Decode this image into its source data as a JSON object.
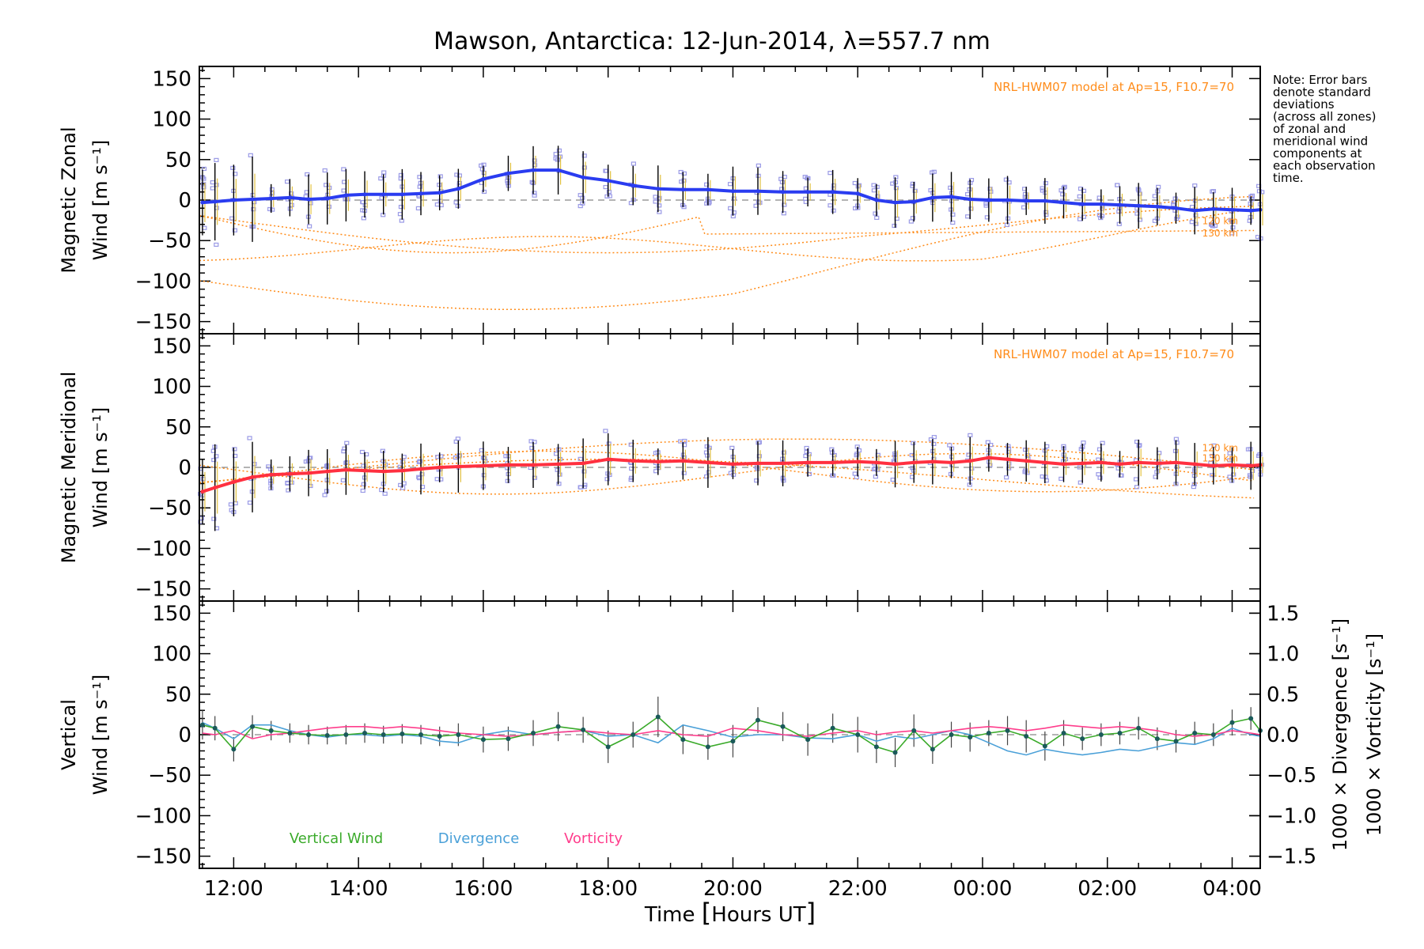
{
  "chart_data": {
    "type": "line",
    "title": "Mawson, Antarctica: 12-Jun-2014, λ=557.7 nm",
    "xlabel_prefix": "Time ",
    "xlabel_unit": "Hours UT",
    "xlim_hours": [
      11.45,
      28.45
    ],
    "x_ticks": [
      12,
      14,
      16,
      18,
      20,
      22,
      24,
      26,
      28
    ],
    "x_tick_labels": [
      "12:00",
      "14:00",
      "16:00",
      "18:00",
      "20:00",
      "22:00",
      "00:00",
      "02:00",
      "04:00"
    ],
    "note_lines": [
      "Note: Error bars",
      "denote standard",
      "deviations",
      "(across all zones)",
      "of zonal and",
      "meridional wind",
      "components at",
      "each observation",
      "time."
    ],
    "colors": {
      "zonal": "#2a3cf0",
      "meridional": "#ff3040",
      "model": "#ff8c1a",
      "vertical": "#2e8b2e",
      "divergence": "#4aa0d8",
      "vorticity": "#ff3d8c",
      "scatter": "#9a9ae6"
    },
    "panels": [
      {
        "id": "zonal",
        "ylabel_line1": "Magnetic Zonal",
        "ylabel_line2": "Wind [m s⁻¹]",
        "ylim": [
          -165,
          165
        ],
        "y_ticks": [
          150,
          100,
          50,
          0,
          -50,
          -100,
          -150
        ],
        "model_label": "NRL-HWM07 model at Ap=15, F10.7=70",
        "model_height_labels": [
          "120 km",
          "130 km"
        ],
        "series": [
          {
            "name": "Magnetic Zonal Wind",
            "x": [
              11.5,
              11.7,
              12.0,
              12.3,
              12.6,
              12.9,
              13.2,
              13.5,
              13.8,
              14.1,
              14.4,
              14.7,
              15.0,
              15.3,
              15.6,
              16.0,
              16.4,
              16.8,
              17.2,
              17.6,
              18.0,
              18.4,
              18.8,
              19.2,
              19.6,
              20.0,
              20.4,
              20.8,
              21.2,
              21.6,
              22.0,
              22.3,
              22.6,
              22.9,
              23.2,
              23.5,
              23.8,
              24.1,
              24.4,
              24.7,
              25.0,
              25.3,
              25.6,
              25.9,
              26.2,
              26.5,
              26.8,
              27.1,
              27.4,
              27.7,
              28.0,
              28.3,
              28.45
            ],
            "y": [
              -3,
              -2,
              0,
              1,
              2,
              3,
              1,
              2,
              6,
              7,
              7,
              7,
              8,
              9,
              14,
              26,
              33,
              37,
              37,
              28,
              24,
              18,
              14,
              13,
              13,
              11,
              11,
              10,
              10,
              10,
              8,
              0,
              -3,
              -2,
              3,
              4,
              1,
              0,
              0,
              -1,
              -1,
              -3,
              -5,
              -5,
              -6,
              -7,
              -8,
              -10,
              -13,
              -11,
              -12,
              -13,
              -12
            ]
          }
        ]
      },
      {
        "id": "meridional",
        "ylabel_line1": "Magnetic Meridional",
        "ylabel_line2": "Wind [m s⁻¹]",
        "ylim": [
          -165,
          165
        ],
        "y_ticks": [
          150,
          100,
          50,
          0,
          -50,
          -100,
          -150
        ],
        "model_label": "NRL-HWM07 model at Ap=15, F10.7=70",
        "model_height_labels": [
          "120 km",
          "130 km"
        ],
        "series": [
          {
            "name": "Magnetic Meridional Wind",
            "x": [
              11.5,
              11.7,
              12.0,
              12.3,
              12.6,
              12.9,
              13.2,
              13.5,
              13.8,
              14.1,
              14.4,
              14.7,
              15.0,
              15.3,
              15.6,
              16.0,
              16.4,
              16.8,
              17.2,
              17.6,
              18.0,
              18.4,
              18.8,
              19.2,
              19.6,
              20.0,
              20.4,
              20.8,
              21.2,
              21.6,
              22.0,
              22.3,
              22.6,
              22.9,
              23.2,
              23.5,
              23.8,
              24.1,
              24.4,
              24.7,
              25.0,
              25.3,
              25.6,
              25.9,
              26.2,
              26.5,
              26.8,
              27.1,
              27.4,
              27.7,
              28.0,
              28.3,
              28.45
            ],
            "y": [
              -30,
              -25,
              -18,
              -12,
              -9,
              -8,
              -7,
              -5,
              -3,
              -4,
              -5,
              -4,
              -2,
              0,
              1,
              2,
              3,
              3,
              4,
              5,
              10,
              8,
              7,
              8,
              6,
              4,
              5,
              5,
              6,
              6,
              7,
              6,
              4,
              6,
              7,
              6,
              8,
              12,
              10,
              8,
              6,
              4,
              5,
              6,
              4,
              6,
              5,
              6,
              4,
              2,
              3,
              2,
              3
            ]
          }
        ]
      },
      {
        "id": "vertical",
        "ylabel_line1": "Vertical",
        "ylabel_line2": "Wind [m s⁻¹]",
        "ylim": [
          -165,
          165
        ],
        "y_ticks": [
          150,
          100,
          50,
          0,
          -50,
          -100,
          -150
        ],
        "right_ylim": [
          -1.65,
          1.65
        ],
        "right_ticks": [
          1.5,
          1.0,
          0.5,
          0.0,
          -0.5,
          -1.0,
          -1.5
        ],
        "right_tick_labels": [
          "1.5",
          "1.0",
          "0.5",
          "0.0",
          "−0.5",
          "−1.0",
          "−1.5"
        ],
        "right_label_div": "1000 × Divergence [s⁻¹]",
        "right_label_vort": "1000 × Vorticity [s⁻¹]",
        "legend": [
          "Vertical Wind",
          "Divergence",
          "Vorticity"
        ],
        "series": [
          {
            "name": "Vertical Wind",
            "x": [
              11.5,
              11.7,
              12.0,
              12.3,
              12.6,
              12.9,
              13.2,
              13.5,
              13.8,
              14.1,
              14.4,
              14.7,
              15.0,
              15.3,
              15.6,
              16.0,
              16.4,
              16.8,
              17.2,
              17.6,
              18.0,
              18.4,
              18.8,
              19.2,
              19.6,
              20.0,
              20.4,
              20.8,
              21.2,
              21.6,
              22.0,
              22.3,
              22.6,
              22.9,
              23.2,
              23.5,
              23.8,
              24.1,
              24.4,
              24.7,
              25.0,
              25.3,
              25.6,
              25.9,
              26.2,
              26.5,
              26.8,
              27.1,
              27.4,
              27.7,
              28.0,
              28.3,
              28.45
            ],
            "y": [
              12,
              8,
              -18,
              10,
              5,
              2,
              0,
              -1,
              0,
              2,
              0,
              1,
              0,
              -2,
              0,
              -6,
              -5,
              2,
              10,
              6,
              -15,
              0,
              22,
              -6,
              -15,
              -8,
              18,
              10,
              -6,
              8,
              0,
              -15,
              -22,
              5,
              -18,
              0,
              -3,
              2,
              5,
              -2,
              -14,
              2,
              -5,
              0,
              2,
              8,
              -5,
              -8,
              2,
              0,
              15,
              20,
              5
            ],
            "err": [
              18,
              15,
              15,
              14,
              12,
              12,
              12,
              11,
              12,
              12,
              11,
              12,
              12,
              12,
              14,
              16,
              15,
              16,
              18,
              16,
              20,
              16,
              25,
              18,
              16,
              20,
              16,
              18,
              20,
              18,
              22,
              20,
              18,
              20,
              18,
              16,
              18,
              16,
              18,
              20,
              18,
              16,
              14,
              14,
              14,
              14,
              14,
              14,
              14,
              14,
              16,
              14,
              12
            ]
          },
          {
            "name": "Divergence",
            "x": [
              11.5,
              11.7,
              12.0,
              12.3,
              12.6,
              12.9,
              13.2,
              13.5,
              13.8,
              14.1,
              14.4,
              14.7,
              15.0,
              15.3,
              15.6,
              16.0,
              16.4,
              16.8,
              17.2,
              17.6,
              18.0,
              18.4,
              18.8,
              19.2,
              19.6,
              20.0,
              20.4,
              20.8,
              21.2,
              21.6,
              22.0,
              22.3,
              22.6,
              22.9,
              23.2,
              23.5,
              23.8,
              24.1,
              24.4,
              24.7,
              25.0,
              25.3,
              25.6,
              25.9,
              26.2,
              26.5,
              26.8,
              27.1,
              27.4,
              27.7,
              28.0,
              28.3,
              28.45
            ],
            "y": [
              0.15,
              0.08,
              -0.05,
              0.12,
              0.12,
              0.05,
              0.0,
              -0.03,
              0.0,
              0.0,
              -0.02,
              0.0,
              -0.02,
              -0.08,
              -0.1,
              0.0,
              0.05,
              0.0,
              0.03,
              0.05,
              -0.02,
              0.0,
              -0.1,
              0.12,
              0.05,
              -0.03,
              0.0,
              0.0,
              -0.04,
              -0.05,
              0.0,
              -0.08,
              -0.02,
              -0.05,
              0.0,
              0.05,
              0.0,
              -0.1,
              -0.2,
              -0.25,
              -0.18,
              -0.22,
              -0.25,
              -0.22,
              -0.18,
              -0.2,
              -0.15,
              -0.1,
              -0.12,
              -0.05,
              0.08,
              0.0,
              -0.02
            ]
          },
          {
            "name": "Vorticity",
            "x": [
              11.5,
              11.7,
              12.0,
              12.3,
              12.6,
              12.9,
              13.2,
              13.5,
              13.8,
              14.1,
              14.4,
              14.7,
              15.0,
              15.3,
              15.6,
              16.0,
              16.4,
              16.8,
              17.2,
              17.6,
              18.0,
              18.4,
              18.8,
              19.2,
              19.6,
              20.0,
              20.4,
              20.8,
              21.2,
              21.6,
              22.0,
              22.3,
              22.6,
              22.9,
              23.2,
              23.5,
              23.8,
              24.1,
              24.4,
              24.7,
              25.0,
              25.3,
              25.6,
              25.9,
              26.2,
              26.5,
              26.8,
              27.1,
              27.4,
              27.7,
              28.0,
              28.3,
              28.45
            ],
            "y": [
              0.02,
              0.0,
              0.05,
              -0.05,
              0.0,
              0.02,
              0.05,
              0.08,
              0.1,
              0.1,
              0.08,
              0.1,
              0.08,
              0.05,
              0.02,
              0.0,
              -0.02,
              0.0,
              0.03,
              0.05,
              0.02,
              0.0,
              0.05,
              0.0,
              -0.02,
              0.08,
              0.05,
              0.0,
              -0.02,
              0.02,
              0.05,
              0.0,
              0.03,
              0.05,
              0.02,
              0.05,
              0.08,
              0.1,
              0.08,
              0.05,
              0.08,
              0.12,
              0.1,
              0.08,
              0.1,
              0.08,
              0.05,
              0.0,
              -0.02,
              0.0,
              0.05,
              0.02,
              0.0
            ]
          }
        ]
      }
    ]
  }
}
